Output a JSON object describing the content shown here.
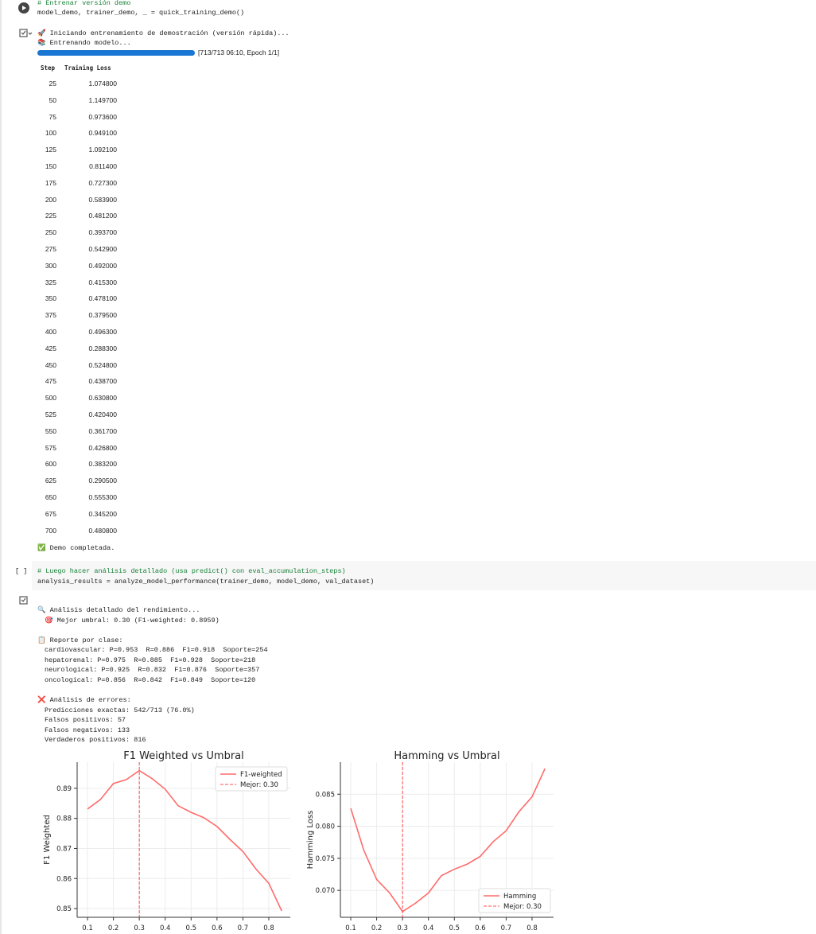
{
  "cells": [
    {
      "code": [
        "# Entrenar versión demo",
        "model_demo, trainer_demo, _ = quick_training_demo()"
      ],
      "output": {
        "lines": [
          "🚀 Iniciando entrenamiento de demostración (versión rápida)...",
          "📚 Entrenando modelo..."
        ],
        "progress": {
          "value": 713,
          "max": 713,
          "label": "[713/713 06:10, Epoch 1/1]"
        },
        "table": {
          "columns": [
            "Step",
            "Training Loss"
          ],
          "rows": [
            [
              25,
              "1.074800"
            ],
            [
              50,
              "1.149700"
            ],
            [
              75,
              "0.973600"
            ],
            [
              100,
              "0.949100"
            ],
            [
              125,
              "1.092100"
            ],
            [
              150,
              "0.811400"
            ],
            [
              175,
              "0.727300"
            ],
            [
              200,
              "0.583900"
            ],
            [
              225,
              "0.481200"
            ],
            [
              250,
              "0.393700"
            ],
            [
              275,
              "0.542900"
            ],
            [
              300,
              "0.492000"
            ],
            [
              325,
              "0.415300"
            ],
            [
              350,
              "0.478100"
            ],
            [
              375,
              "0.379500"
            ],
            [
              400,
              "0.496300"
            ],
            [
              425,
              "0.288300"
            ],
            [
              450,
              "0.524800"
            ],
            [
              475,
              "0.438700"
            ],
            [
              500,
              "0.630800"
            ],
            [
              525,
              "0.420400"
            ],
            [
              550,
              "0.361700"
            ],
            [
              575,
              "0.426800"
            ],
            [
              600,
              "0.383200"
            ],
            [
              625,
              "0.290500"
            ],
            [
              650,
              "0.555300"
            ],
            [
              675,
              "0.345200"
            ],
            [
              700,
              "0.480800"
            ]
          ]
        },
        "footer": "✅ Demo completada."
      }
    },
    {
      "prompt": "[ ]",
      "code": [
        "# Luego hacer análisis detallado (usa predict() con eval_accumulation_steps)",
        "analysis_results = analyze_model_performance(trainer_demo, model_demo, val_dataset)"
      ],
      "output": {
        "groups": [
          [
            "🔍 Análisis detallado del rendimiento...",
            "🎯 Mejor umbral: 0.30 (F1-weighted: 0.8959)"
          ],
          [
            "📋 Reporte por clase:",
            "cardiovascular: P=0.953  R=0.886  F1=0.918  Soporte=254",
            "hepatorenal: P=0.975  R=0.885  F1=0.928  Soporte=218",
            "neurological: P=0.925  R=0.832  F1=0.876  Soporte=357",
            "oncological: P=0.856  R=0.842  F1=0.849  Soporte=120"
          ],
          [
            "❌ Análisis de errores:",
            "Predicciones exactas: 542/713 (76.0%)",
            "Falsos positivos: 57",
            "Falsos negativos: 133",
            "Verdaderos positivos: 816"
          ]
        ]
      }
    }
  ],
  "chart_data": [
    {
      "type": "line",
      "title": "F1 Weighted vs Umbral",
      "ylabel": "F1 Weighted",
      "x": [
        0.1,
        0.15,
        0.2,
        0.25,
        0.3,
        0.35,
        0.4,
        0.45,
        0.5,
        0.55,
        0.6,
        0.65,
        0.7,
        0.75,
        0.8,
        0.85
      ],
      "series": [
        {
          "name": "F1-weighted",
          "color": "#ff6b6b",
          "values": [
            0.8831,
            0.8863,
            0.8916,
            0.8929,
            0.8959,
            0.8932,
            0.8897,
            0.8842,
            0.882,
            0.8802,
            0.8773,
            0.873,
            0.869,
            0.8632,
            0.8584,
            0.8492
          ]
        }
      ],
      "best_x": 0.3,
      "best_label": "Mejor: 0.30",
      "best_color": "#ff4d4d",
      "xlim": [
        0.06,
        0.883
      ],
      "ylim": [
        0.8471,
        0.8987
      ],
      "xticks": [
        0.1,
        0.2,
        0.3,
        0.4,
        0.5,
        0.6,
        0.7,
        0.8
      ],
      "yticks": [
        0.85,
        0.86,
        0.87,
        0.88,
        0.89
      ],
      "grid": true,
      "legend": "upper right"
    },
    {
      "type": "line",
      "title": "Hamming vs Umbral",
      "ylabel": "Hamming Loss",
      "x": [
        0.1,
        0.15,
        0.2,
        0.25,
        0.3,
        0.35,
        0.4,
        0.45,
        0.5,
        0.55,
        0.6,
        0.65,
        0.7,
        0.75,
        0.8,
        0.85
      ],
      "series": [
        {
          "name": "Hamming",
          "color": "#ff6b6b",
          "values": [
            0.0828,
            0.0763,
            0.0717,
            0.0696,
            0.0667,
            0.068,
            0.0696,
            0.0723,
            0.0733,
            0.0741,
            0.0753,
            0.0776,
            0.0793,
            0.0823,
            0.0846,
            0.089
          ]
        }
      ],
      "best_x": 0.3,
      "best_label": "Mejor: 0.30",
      "best_color": "#ff4d4d",
      "xlim": [
        0.06,
        0.883
      ],
      "ylim": [
        0.0658,
        0.09
      ],
      "xticks": [
        0.1,
        0.2,
        0.3,
        0.4,
        0.5,
        0.6,
        0.7,
        0.8
      ],
      "yticks": [
        {
          "value": 0.07,
          "label": "0.070"
        },
        0.075,
        {
          "value": 0.08,
          "label": "0.080"
        },
        0.085
      ],
      "grid": true,
      "legend": "lower right"
    }
  ]
}
